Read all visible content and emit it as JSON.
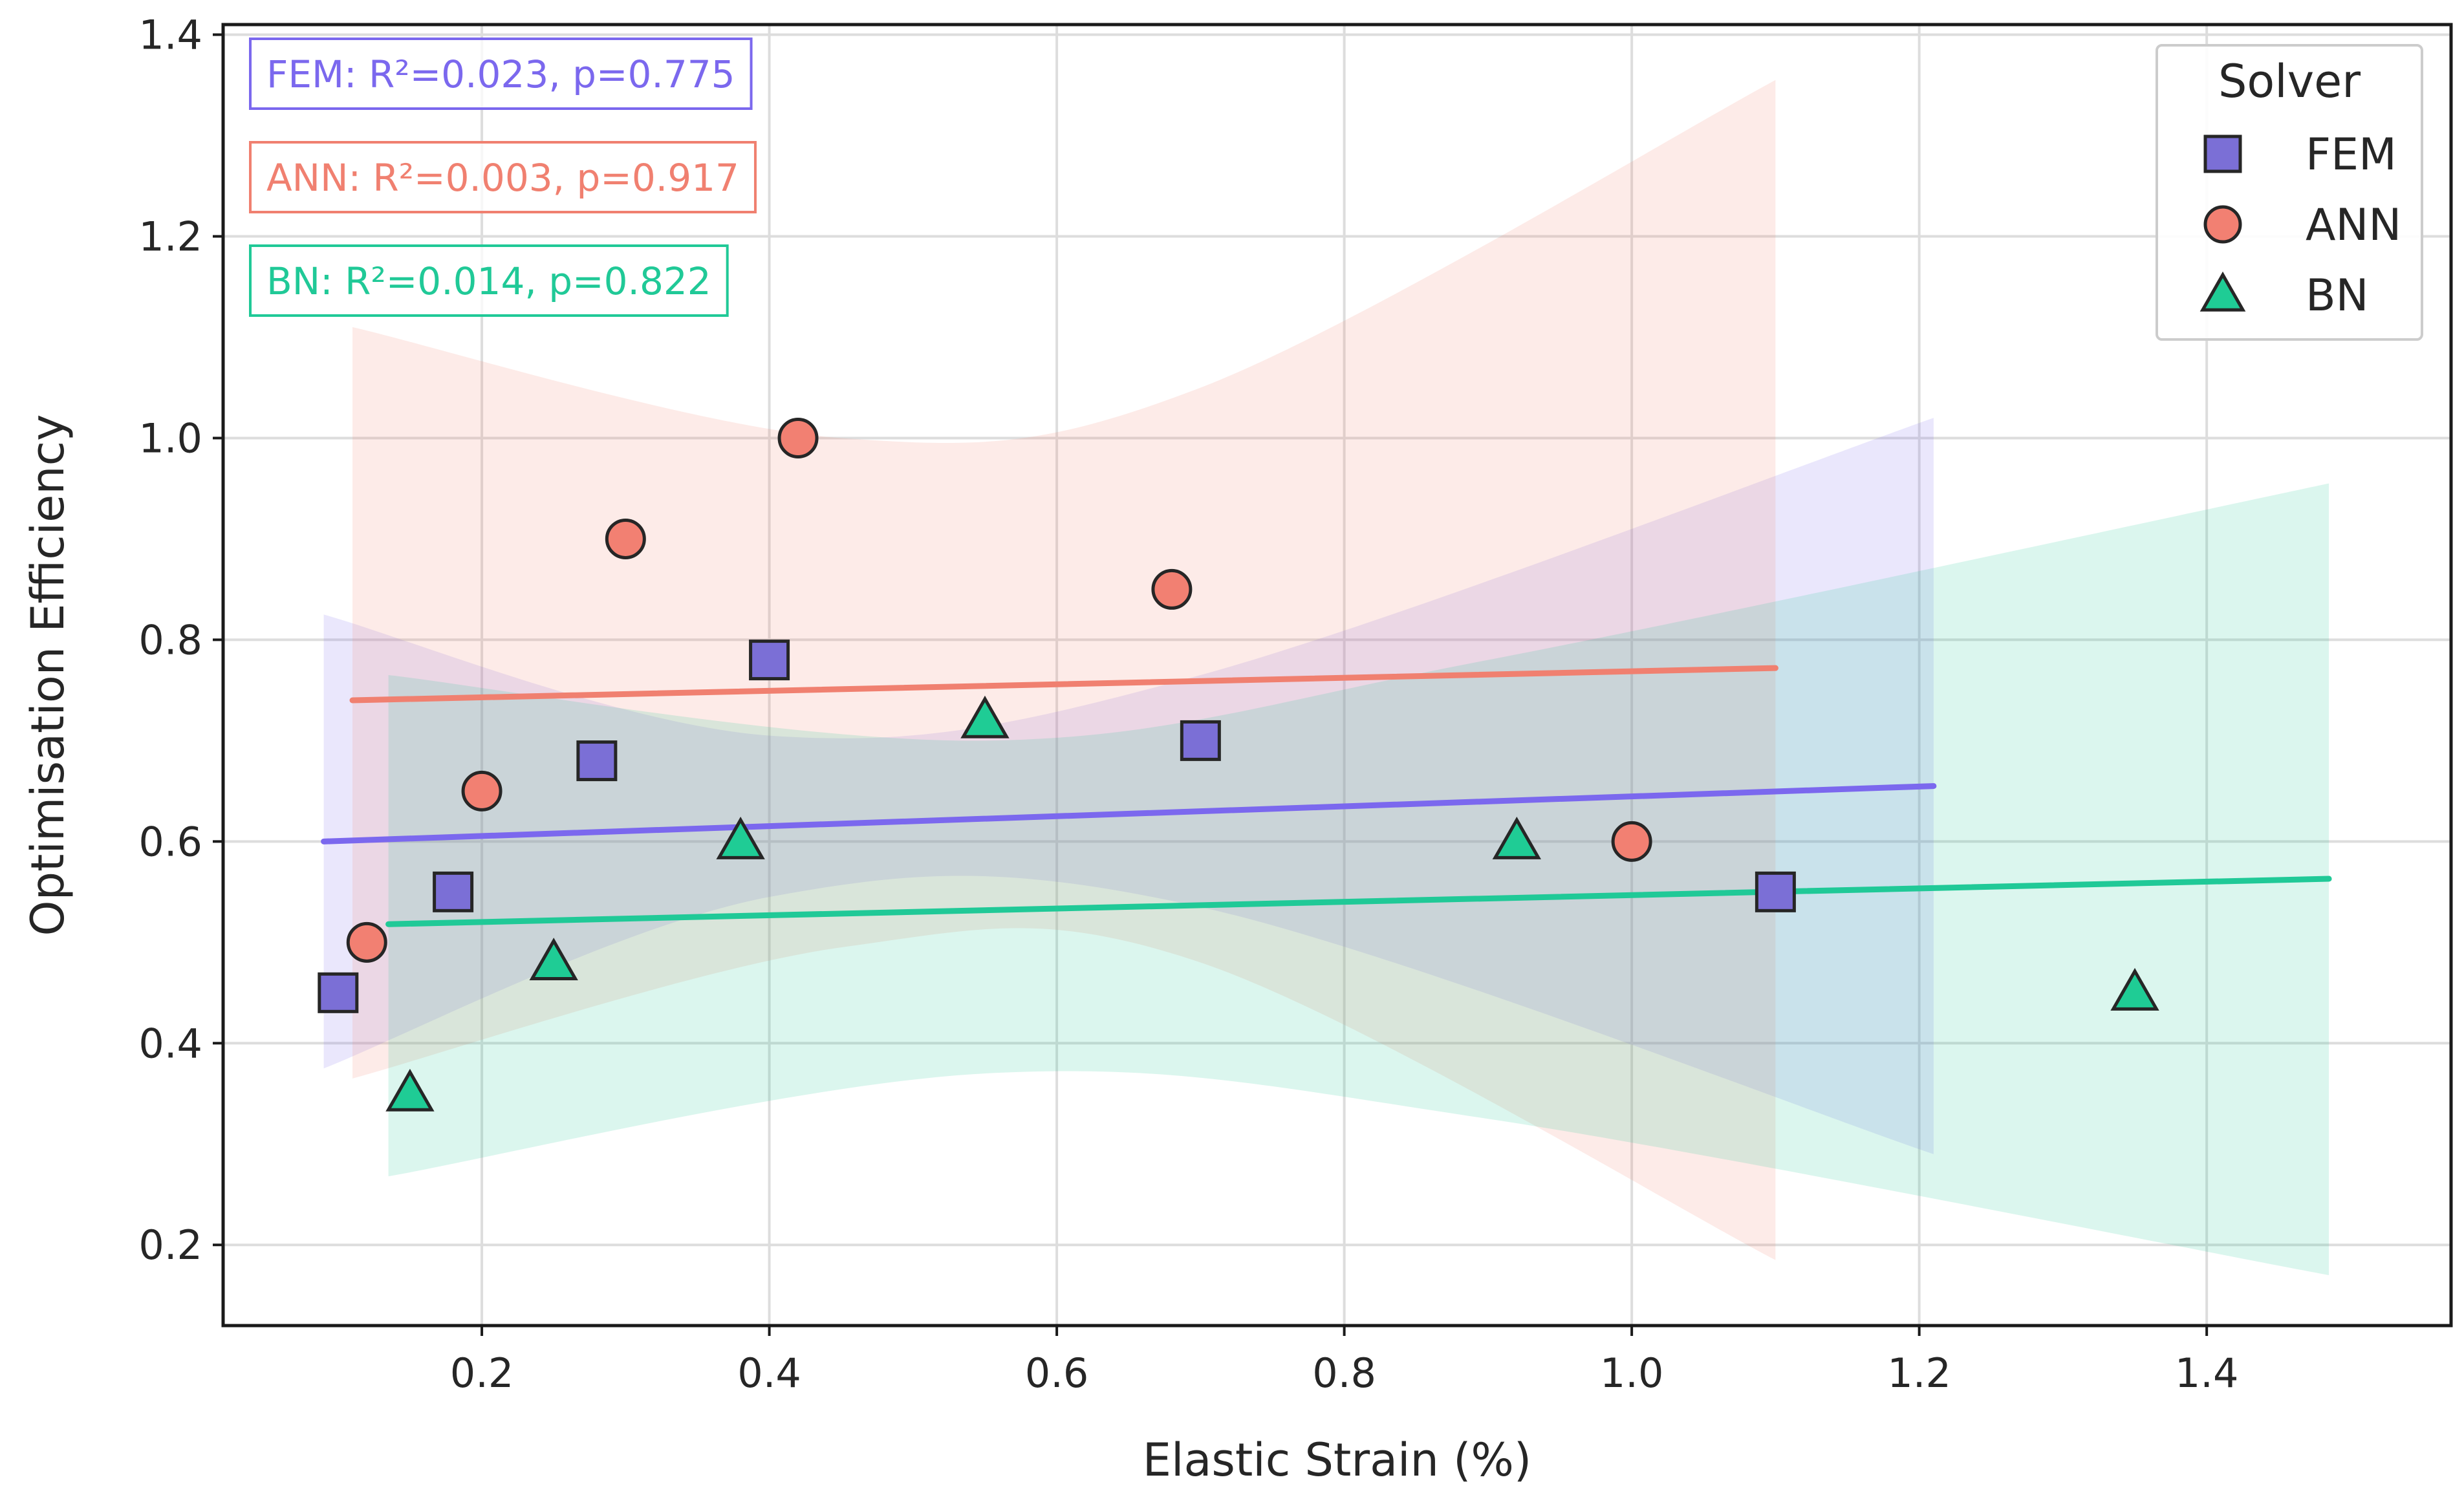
{
  "chart_data": {
    "type": "scatter",
    "xlabel": "Elastic Strain (%)",
    "ylabel": "Optimisation Efficiency",
    "xlim": [
      0.02,
      1.57
    ],
    "ylim": [
      0.12,
      1.41
    ],
    "x_ticks": [
      "0.2",
      "0.4",
      "0.6",
      "0.8",
      "1.0",
      "1.2",
      "1.4"
    ],
    "y_ticks": [
      "0.2",
      "0.4",
      "0.6",
      "0.8",
      "1.0",
      "1.2",
      "1.4"
    ],
    "grid": true,
    "legend_title": "Solver",
    "legend_position": "top-right",
    "series": [
      {
        "name": "FEM",
        "marker": "square",
        "color": "#7B68EE",
        "fill": "#7B6FD6",
        "x": [
          0.1,
          0.18,
          0.28,
          0.4,
          0.7,
          1.1
        ],
        "y": [
          0.45,
          0.55,
          0.68,
          0.78,
          0.7,
          0.55
        ],
        "fit": {
          "x": [
            0.09,
            1.21
          ],
          "y": [
            0.6,
            0.655
          ]
        },
        "band_upper": [
          [
            0.09,
            0.825
          ],
          [
            0.4,
            0.705
          ],
          [
            0.7,
            0.765
          ],
          [
            1.21,
            1.02
          ]
        ],
        "band_lower": [
          [
            0.09,
            0.375
          ],
          [
            0.4,
            0.545
          ],
          [
            0.7,
            0.535
          ],
          [
            1.21,
            0.29
          ]
        ],
        "stat_label": "FEM: R²=0.023, p=0.775"
      },
      {
        "name": "ANN",
        "marker": "circle",
        "color": "#F08070",
        "fill": "#F28072",
        "x": [
          0.12,
          0.2,
          0.3,
          0.42,
          0.68,
          1.0
        ],
        "y": [
          0.5,
          0.65,
          0.9,
          1.0,
          0.85,
          0.6
        ],
        "fit": {
          "x": [
            0.11,
            1.1
          ],
          "y": [
            0.74,
            0.772
          ]
        },
        "band_upper": [
          [
            0.11,
            1.11
          ],
          [
            0.45,
            1.0
          ],
          [
            0.7,
            1.05
          ],
          [
            1.1,
            1.355
          ]
        ],
        "band_lower": [
          [
            0.11,
            0.365
          ],
          [
            0.45,
            0.495
          ],
          [
            0.7,
            0.48
          ],
          [
            1.1,
            0.185
          ]
        ],
        "stat_label": "ANN: R²=0.003, p=0.917"
      },
      {
        "name": "BN",
        "marker": "triangle",
        "color": "#20C997",
        "fill": "#1FCC95",
        "x": [
          0.15,
          0.25,
          0.38,
          0.55,
          0.92,
          1.35
        ],
        "y": [
          0.35,
          0.48,
          0.6,
          0.72,
          0.6,
          0.45
        ],
        "fit": {
          "x": [
            0.135,
            1.485
          ],
          "y": [
            0.518,
            0.563
          ]
        },
        "band_upper": [
          [
            0.135,
            0.765
          ],
          [
            0.55,
            0.7
          ],
          [
            0.9,
            0.78
          ],
          [
            1.485,
            0.955
          ]
        ],
        "band_lower": [
          [
            0.135,
            0.268
          ],
          [
            0.55,
            0.37
          ],
          [
            0.9,
            0.325
          ],
          [
            1.485,
            0.17
          ]
        ],
        "stat_label": "BN: R²=0.014, p=0.822"
      }
    ]
  },
  "colors": {
    "grid": "#DDDDDD",
    "frame": "#1a1a1a",
    "marker_edge": "#262626"
  }
}
